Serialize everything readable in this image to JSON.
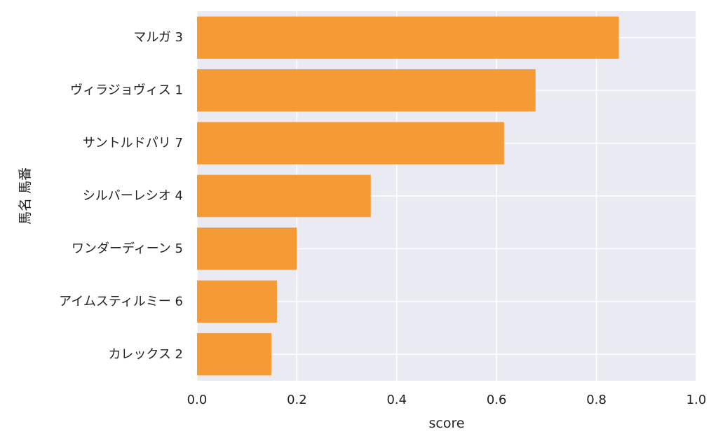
{
  "chart_data": {
    "type": "bar",
    "orientation": "horizontal",
    "categories": [
      "マルガ 3",
      "ヴィラジョヴィス 1",
      "サントルドパリ 7",
      "シルバーレシオ 4",
      "ワンダーディーン 5",
      "アイムスティルミー 6",
      "カレックス 2"
    ],
    "values": [
      0.845,
      0.678,
      0.615,
      0.348,
      0.2,
      0.16,
      0.149
    ],
    "title": "",
    "xlabel": "score",
    "ylabel": "馬名 馬番",
    "xlim": [
      0.0,
      1.0
    ],
    "xticks": [
      "0.0",
      "0.2",
      "0.4",
      "0.6",
      "0.8",
      "1.0"
    ],
    "grid": true,
    "colors": {
      "bar": "#f7962a",
      "plot_background": "#eaeaf2",
      "grid": "#ffffff"
    }
  }
}
